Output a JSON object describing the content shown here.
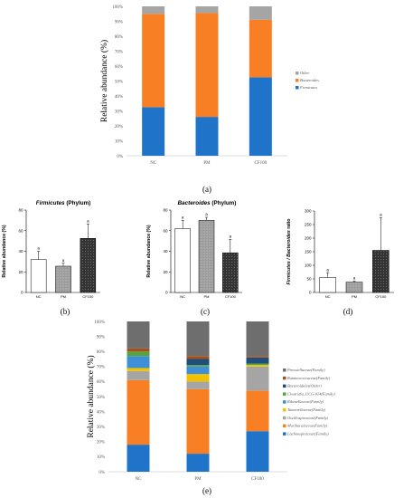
{
  "panel_labels": [
    "(a)",
    "(b)",
    "(c)",
    "(d)",
    "(e)"
  ],
  "chart_data": [
    {
      "id": "a",
      "type": "bar",
      "stacked": true,
      "categories": [
        "NC",
        "PM",
        "CF100"
      ],
      "ylabel": "Relative abundance (%)",
      "ylim": [
        0,
        100
      ],
      "yticks": [
        "0%",
        "10%",
        "20%",
        "30%",
        "40%",
        "50%",
        "60%",
        "70%",
        "80%",
        "90%",
        "100%"
      ],
      "series": [
        {
          "name": "Firmicutes",
          "color": "#1f74c9",
          "values": [
            32.5,
            26.0,
            52.5
          ]
        },
        {
          "name": "Bacteroides",
          "color": "#f97f25",
          "values": [
            62.5,
            69.5,
            38.5
          ]
        },
        {
          "name": "Other",
          "color": "#a5a5a5",
          "values": [
            5.0,
            4.5,
            9.0
          ]
        }
      ],
      "legend_order": [
        "Other",
        "Bacteroides",
        "Firmicutes"
      ],
      "legend": "right",
      "grid": false
    },
    {
      "id": "b",
      "type": "bar",
      "title": "Firmicutes (Phylum)",
      "title_italic": "Firmicutes",
      "title_rest": " (Phylum)",
      "categories": [
        "NC",
        "PM",
        "CF100"
      ],
      "ylabel": "Relative abundance (%)",
      "ylim": [
        0,
        80
      ],
      "yticks": [
        "0",
        "20",
        "40",
        "60",
        "80"
      ],
      "values": [
        32.0,
        25.5,
        52.5
      ],
      "errors": [
        8.0,
        3.0,
        14.0
      ],
      "letters": [
        "a",
        "a",
        "a"
      ],
      "fills": [
        "#ffffff",
        "#9a9a9a",
        "#3c3c3c"
      ]
    },
    {
      "id": "c",
      "type": "bar",
      "title": "Bacteroides (Phylum)",
      "title_italic": "Bacteroides",
      "title_rest": " (Phylum)",
      "categories": [
        "NC",
        "PM",
        "CF100"
      ],
      "ylabel": "Relative abundance (%)",
      "ylim": [
        0,
        80
      ],
      "yticks": [
        "0",
        "20",
        "40",
        "60",
        "80"
      ],
      "values": [
        62.0,
        70.0,
        38.5
      ],
      "errors": [
        8.0,
        3.0,
        13.0
      ],
      "letters": [
        "a",
        "a",
        "a"
      ],
      "fills": [
        "#ffffff",
        "#9a9a9a",
        "#3c3c3c"
      ]
    },
    {
      "id": "d",
      "type": "bar",
      "categories": [
        "NC",
        "PM",
        "CF100"
      ],
      "ylabel": "Firmicutes / Bacteroides ratio",
      "ylabel_italic": "Firmicutes / Bacteroides",
      "ylabel_rest": " ratio",
      "ylim": [
        0,
        300
      ],
      "yticks": [
        "0",
        "50",
        "100",
        "150",
        "200",
        "250",
        "300"
      ],
      "values": [
        55,
        38,
        155
      ],
      "errors": [
        18,
        4,
        120
      ],
      "letters": [
        "a",
        "a",
        "a"
      ],
      "fills": [
        "#ffffff",
        "#9a9a9a",
        "#3c3c3c"
      ]
    },
    {
      "id": "e",
      "type": "bar",
      "stacked": true,
      "categories": [
        "NC",
        "PM",
        "CF100"
      ],
      "ylabel": "Relative abundance (%)",
      "ylim": [
        0,
        100
      ],
      "yticks": [
        "0%",
        "10%",
        "20%",
        "30%",
        "40%",
        "50%",
        "60%",
        "70%",
        "80%",
        "90%",
        "100%"
      ],
      "series": [
        {
          "name": "Lachnospiraceae(Family)",
          "color": "#1f74c9",
          "values": [
            18,
            12,
            27
          ]
        },
        {
          "name": "Muribaculaceae(Family)",
          "color": "#f97f25",
          "values": [
            43,
            43,
            27
          ]
        },
        {
          "name": "Oscillospiraceae(Family)",
          "color": "#a5a5a5",
          "values": [
            6,
            5,
            16
          ]
        },
        {
          "name": "Tannerellaceae(Family)",
          "color": "#f2c200",
          "values": [
            2,
            5,
            1
          ]
        },
        {
          "name": "Rikenellaceae(Family)",
          "color": "#3f8fd6",
          "values": [
            8,
            5,
            0
          ]
        },
        {
          "name": "Clostridia_UCG-014(Family)",
          "color": "#57a33c",
          "values": [
            3,
            1,
            1
          ]
        },
        {
          "name": "Bacteroidales(Order)",
          "color": "#1d4e7d",
          "values": [
            0,
            4,
            4
          ]
        },
        {
          "name": "Ruminococcaceae(Family)",
          "color": "#a6501d",
          "values": [
            2,
            2,
            1
          ]
        },
        {
          "name": "Prevotellaceae(Family)",
          "color": "#6e6e6e",
          "values": [
            18,
            23,
            23
          ]
        }
      ],
      "legend_order": [
        "Prevotellaceae(Family)",
        "Ruminococcaceae(Family)",
        "Bacteroidales(Order)",
        "Clostridia_UCG-014(Family)",
        "Rikenellaceae(Family)",
        "Tannerellaceae(Family)",
        "Oscillospiraceae(Family)",
        "Muribaculaceae(Family)",
        "Lachnospiraceae(Family)"
      ],
      "legend": "right",
      "grid": false
    }
  ]
}
